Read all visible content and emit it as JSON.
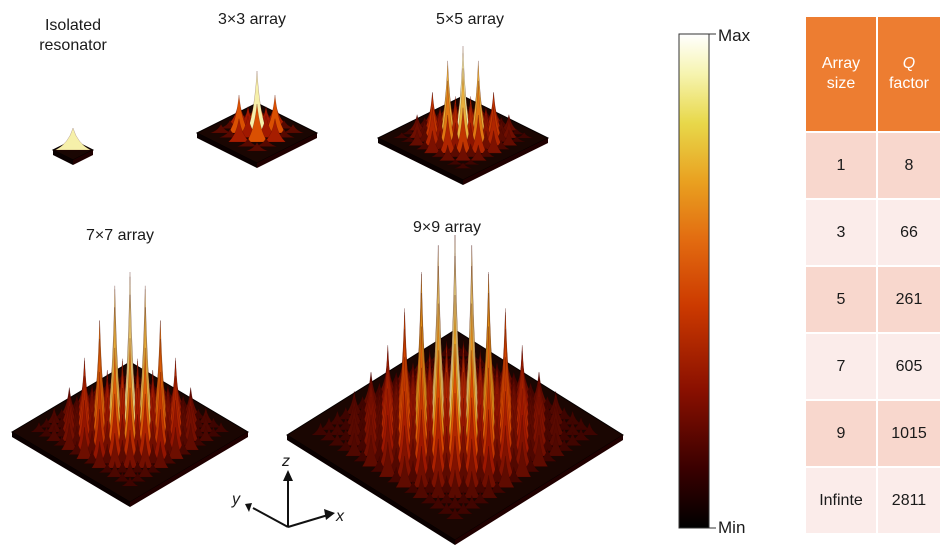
{
  "panels": [
    {
      "key": "isolated",
      "label_line1": "Isolated",
      "label_line2": "resonator",
      "n": 1
    },
    {
      "key": "a3",
      "label": "3×3 array",
      "n": 3
    },
    {
      "key": "a5",
      "label": "5×5 array",
      "n": 5
    },
    {
      "key": "a7",
      "label": "7×7 array",
      "n": 7
    },
    {
      "key": "a9",
      "label": "9×9 array",
      "n": 9
    }
  ],
  "axes": {
    "x": "x",
    "y": "y",
    "z": "z"
  },
  "colorbar": {
    "max_label": "Max",
    "min_label": "Min",
    "colors": [
      "#000000",
      "#3a0000",
      "#8a1000",
      "#cc3a00",
      "#e26a10",
      "#e9a020",
      "#e8d84a",
      "#f6f4b0",
      "#ffffff"
    ]
  },
  "table": {
    "header": {
      "col1_line1": "Array",
      "col1_line2": "size",
      "col2_italic": "Q",
      "col2_line2": "factor"
    },
    "rows": [
      {
        "size": "1",
        "q": "8"
      },
      {
        "size": "3",
        "q": "66"
      },
      {
        "size": "5",
        "q": "261"
      },
      {
        "size": "7",
        "q": "605"
      },
      {
        "size": "9",
        "q": "1015"
      },
      {
        "size": "Infinte",
        "q": "2811"
      }
    ],
    "header_color": "#ed7d31"
  }
}
